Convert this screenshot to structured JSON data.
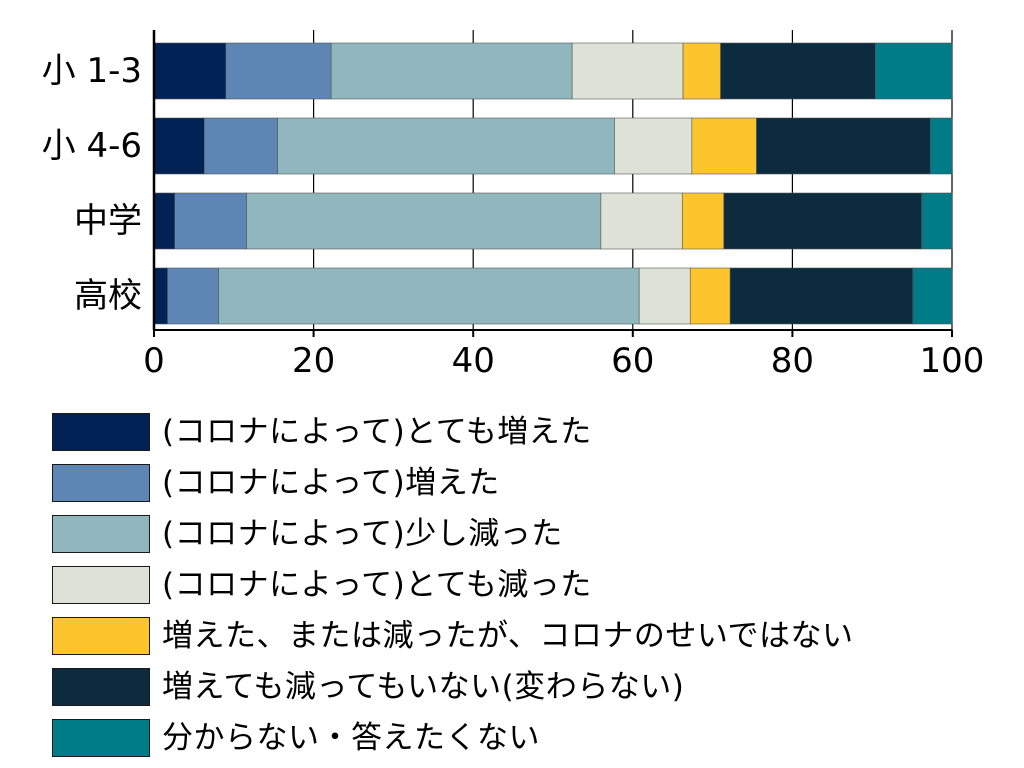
{
  "chart_data": {
    "type": "bar",
    "orientation": "horizontal",
    "stacked": "percent",
    "categories": [
      "小 1-3",
      "小 4-6",
      "中学",
      "高校"
    ],
    "xlim": [
      0,
      100
    ],
    "x_ticks": [
      "0",
      "20",
      "40",
      "60",
      "80",
      "100"
    ],
    "grid": "vertical",
    "legend_position": "bottom",
    "series": [
      {
        "name": "(コロナによって)とても増えた",
        "color": "#002255",
        "values": [
          9,
          6.3,
          2.6,
          1.7
        ]
      },
      {
        "name": "(コロナによって)増えた",
        "color": "#5e86b4",
        "values": [
          13.2,
          9.2,
          9,
          6.4
        ]
      },
      {
        "name": "(コロナによって)少し減った",
        "color": "#8fb7bd",
        "values": [
          30.2,
          42.2,
          44.4,
          52.7
        ]
      },
      {
        "name": "(コロナによって)とても減った",
        "color": "#dde1d6",
        "values": [
          13.9,
          9.7,
          10.2,
          6.4
        ]
      },
      {
        "name": "増えた、または減ったが、コロナのせいではない",
        "color": "#fdc52d",
        "values": [
          4.7,
          8.1,
          5.2,
          5
        ]
      },
      {
        "name": "増えても減ってもいない(変わらない)",
        "color": "#0d2b3e",
        "values": [
          19.4,
          21.8,
          24.8,
          22.9
        ]
      },
      {
        "name": "分からない・答えたくない",
        "color": "#007b88",
        "values": [
          9.6,
          2.7,
          3.8,
          4.9
        ]
      }
    ]
  }
}
